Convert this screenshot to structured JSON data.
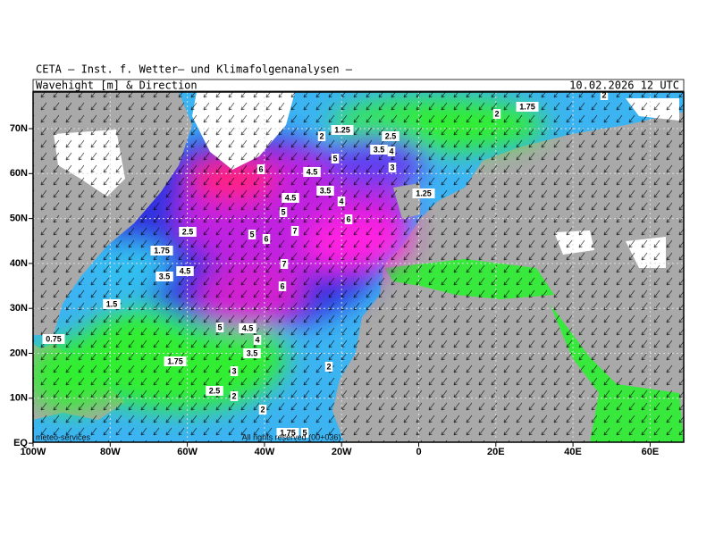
{
  "header": {
    "title": "CETA – Inst. f. Wetter– und Klimafolgenanalysen –",
    "subtitle": "Wavehight [m] & Direction",
    "date": "10.02.2026 12 UTC"
  },
  "axes": {
    "lon": [
      "100W",
      "80W",
      "60W",
      "40W",
      "20W",
      "0",
      "20E",
      "40E",
      "60E"
    ],
    "lat": [
      "70N",
      "60N",
      "50N",
      "40N",
      "30N",
      "20N",
      "10N",
      "EQ"
    ]
  },
  "wave_labels": [
    "2",
    "2",
    "1.75",
    "2",
    "1.25",
    "2.5",
    "3.5",
    "4",
    "5",
    "3",
    "6",
    "4.5",
    "3.5",
    "1.25",
    "4.5",
    "4",
    "5",
    "6",
    "2.5",
    "5",
    "7",
    "6",
    "1.75",
    "7",
    "4.5",
    "3.5",
    "6",
    "1.5",
    "5",
    "4.5",
    "4",
    "0.75",
    "3.5",
    "1.75",
    "2",
    "3",
    "2.5",
    "2",
    "2",
    "1.75",
    "5"
  ],
  "footer": {
    "left": "meteo-services",
    "center": "All rights reserved (00+036)"
  }
}
